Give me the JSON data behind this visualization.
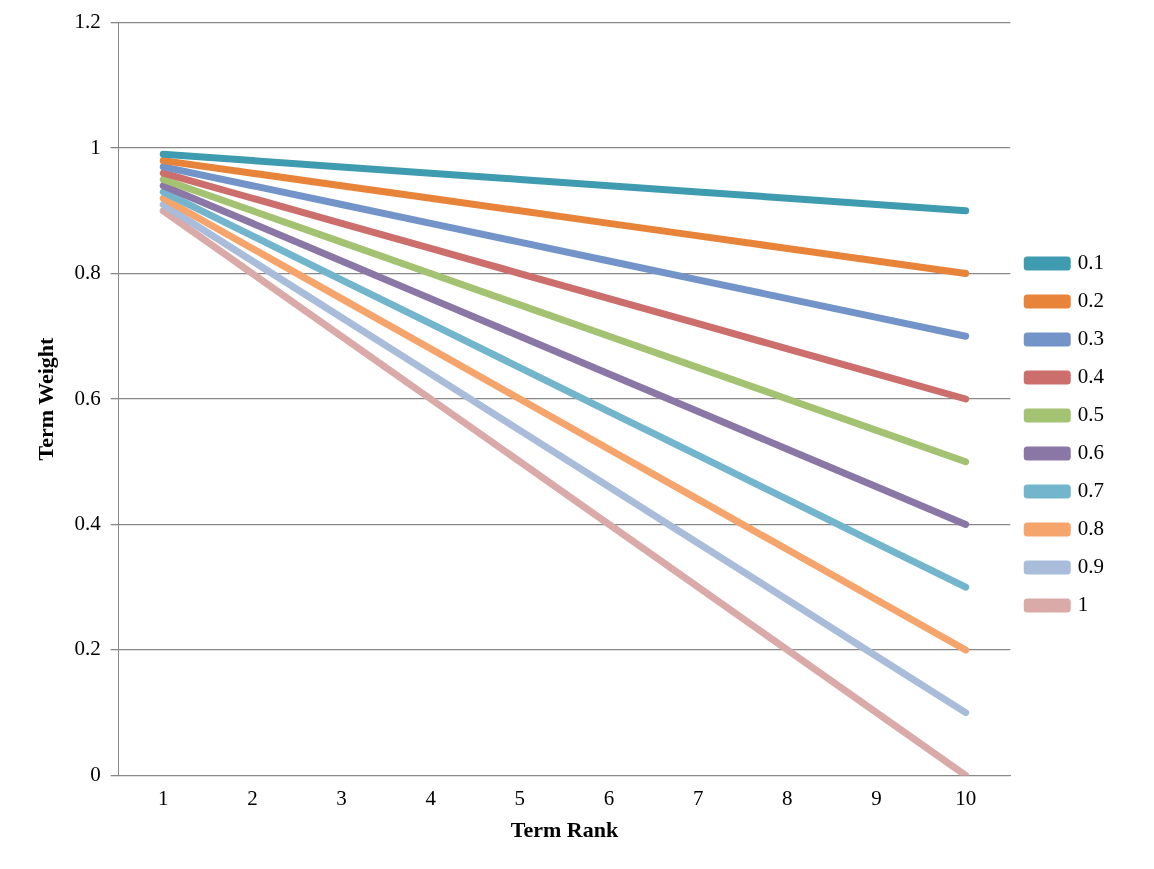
{
  "chart_data": {
    "type": "line",
    "xlabel": "Term Rank",
    "ylabel": "Term Weight",
    "categories": [
      "1",
      "2",
      "3",
      "4",
      "5",
      "6",
      "7",
      "8",
      "9",
      "10"
    ],
    "ylim": [
      0,
      1.2
    ],
    "yticks": [
      0,
      0.2,
      0.4,
      0.6,
      0.8,
      1,
      1.2
    ],
    "grid": "y",
    "legend": "right",
    "marker": "none",
    "line_style": "solid",
    "series": [
      {
        "name": "0.1",
        "color": "#3f9bb0",
        "values": [
          0.99,
          0.98,
          0.97,
          0.96,
          0.95,
          0.94,
          0.93,
          0.92,
          0.91,
          0.9
        ]
      },
      {
        "name": "0.2",
        "color": "#e8843a",
        "values": [
          0.98,
          0.96,
          0.94,
          0.92,
          0.9,
          0.88,
          0.86,
          0.84,
          0.82,
          0.8
        ]
      },
      {
        "name": "0.3",
        "color": "#7394c8",
        "values": [
          0.97,
          0.94,
          0.91,
          0.88,
          0.85,
          0.82,
          0.79,
          0.76,
          0.73,
          0.7
        ]
      },
      {
        "name": "0.4",
        "color": "#cc6e6c",
        "values": [
          0.96,
          0.92,
          0.88,
          0.84,
          0.8,
          0.76,
          0.72,
          0.68,
          0.64,
          0.6
        ]
      },
      {
        "name": "0.5",
        "color": "#a3c272",
        "values": [
          0.95,
          0.9,
          0.85,
          0.8,
          0.75,
          0.7,
          0.65,
          0.6,
          0.55,
          0.5
        ]
      },
      {
        "name": "0.6",
        "color": "#8b77a6",
        "values": [
          0.94,
          0.88,
          0.82,
          0.76,
          0.7,
          0.64,
          0.58,
          0.52,
          0.46,
          0.4
        ]
      },
      {
        "name": "0.7",
        "color": "#73b5cc",
        "values": [
          0.93,
          0.86,
          0.79,
          0.72,
          0.65,
          0.58,
          0.51,
          0.44,
          0.37,
          0.3
        ]
      },
      {
        "name": "0.8",
        "color": "#f5a46c",
        "values": [
          0.92,
          0.84,
          0.76,
          0.68,
          0.6,
          0.52,
          0.44,
          0.36,
          0.28,
          0.2
        ]
      },
      {
        "name": "0.9",
        "color": "#a9bcd9",
        "values": [
          0.91,
          0.82,
          0.73,
          0.64,
          0.55,
          0.46,
          0.37,
          0.28,
          0.19,
          0.1
        ]
      },
      {
        "name": "1",
        "color": "#d9aaa8",
        "values": [
          0.9,
          0.8,
          0.7,
          0.6,
          0.5,
          0.4,
          0.3,
          0.2,
          0.1,
          0
        ]
      }
    ]
  }
}
